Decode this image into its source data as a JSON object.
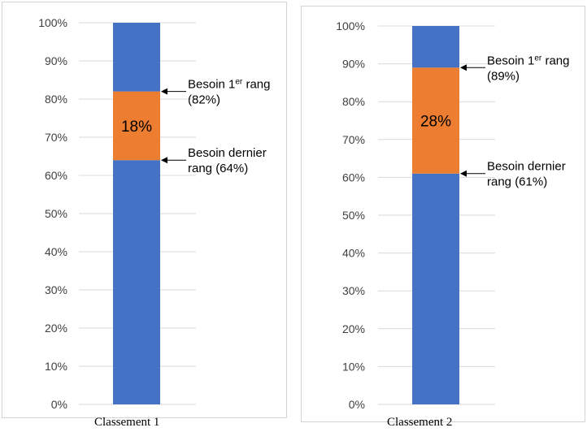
{
  "chart_data": [
    {
      "type": "bar",
      "stacked": true,
      "caption": "Classement 1",
      "yticks": [
        "0%",
        "10%",
        "20%",
        "30%",
        "40%",
        "50%",
        "60%",
        "70%",
        "80%",
        "90%",
        "100%"
      ],
      "ylim": [
        0,
        100
      ],
      "grid": true,
      "segments": [
        {
          "from": 0,
          "to": 64,
          "color": "#4472C4"
        },
        {
          "from": 64,
          "to": 82,
          "color": "#ED7D31",
          "label": "18%"
        },
        {
          "from": 82,
          "to": 100,
          "color": "#4472C4"
        }
      ],
      "annotations": [
        {
          "value": 82,
          "lines": [
            {
              "text": "Besoin 1",
              "sup": "er",
              "rest": " rang"
            },
            {
              "text": "(82%)"
            }
          ]
        },
        {
          "value": 64,
          "lines": [
            {
              "text": "Besoin dernier"
            },
            {
              "text": "rang (64%)"
            }
          ]
        }
      ]
    },
    {
      "type": "bar",
      "stacked": true,
      "caption": "Classement 2",
      "yticks": [
        "0%",
        "10%",
        "20%",
        "30%",
        "40%",
        "50%",
        "60%",
        "70%",
        "80%",
        "90%",
        "100%"
      ],
      "ylim": [
        0,
        100
      ],
      "grid": true,
      "segments": [
        {
          "from": 0,
          "to": 61,
          "color": "#4472C4"
        },
        {
          "from": 61,
          "to": 89,
          "color": "#ED7D31",
          "label": "28%"
        },
        {
          "from": 89,
          "to": 100,
          "color": "#4472C4"
        }
      ],
      "annotations": [
        {
          "value": 89,
          "lines": [
            {
              "text": "Besoin 1",
              "sup": "er",
              "rest": " rang"
            },
            {
              "text": "(89%)"
            }
          ]
        },
        {
          "value": 61,
          "lines": [
            {
              "text": "Besoin dernier"
            },
            {
              "text": "rang (61%)"
            }
          ]
        }
      ]
    }
  ]
}
